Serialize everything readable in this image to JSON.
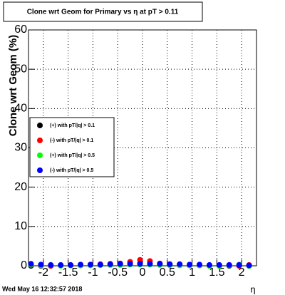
{
  "chart_data": {
    "type": "scatter",
    "title": "Clone wrt Geom for Primary vs  η at pT > 0.11",
    "x_label": "η",
    "y_label": "Clone wrt Geom (%)",
    "timestamp": "Wed May 16 12:32:57 2018",
    "x": [
      -2.25,
      -2.05,
      -1.85,
      -1.65,
      -1.45,
      -1.25,
      -1.05,
      -0.85,
      -0.65,
      -0.45,
      -0.25,
      -0.05,
      0.15,
      0.35,
      0.55,
      0.75,
      0.95,
      1.15,
      1.35,
      1.55,
      1.75,
      1.95,
      2.15
    ],
    "series": [
      {
        "name": "(+) with pT/|q| > 0.1",
        "color": "#000000",
        "values": [
          0,
          0,
          0,
          0.1,
          0.1,
          0.1,
          0.2,
          0.2,
          0.3,
          0.3,
          0.5,
          0.6,
          0.5,
          0.3,
          0.2,
          0.2,
          0.1,
          0.1,
          0,
          0,
          0,
          0,
          0
        ]
      },
      {
        "name": "(-) with pT/|q| > 0.1",
        "color": "#ff0000",
        "values": [
          0.2,
          0.1,
          0,
          0.1,
          0.2,
          0.2,
          0.3,
          0.4,
          0.5,
          0.6,
          1,
          1.5,
          1.2,
          0.6,
          0.4,
          0.3,
          0.2,
          0.2,
          0.1,
          0,
          0.2,
          0,
          0.2
        ]
      },
      {
        "name": "(+) with pT/|q| > 0.5",
        "color": "#00ff00",
        "values": [
          0.3,
          0.1,
          0.2,
          0,
          0.1,
          0.1,
          0.1,
          0.2,
          0.2,
          0.2,
          0.3,
          0.3,
          0.3,
          0.2,
          0.2,
          0.1,
          0.1,
          0.1,
          0,
          0,
          0.1,
          0.3,
          0
        ]
      },
      {
        "name": "(-) with pT/|q| > 0.5",
        "color": "#0000ff",
        "values": [
          0.5,
          0.3,
          0.2,
          0.2,
          0.2,
          0.3,
          0.3,
          0.3,
          0.4,
          0.5,
          0.5,
          0.5,
          0.5,
          0.5,
          0.4,
          0.4,
          0.3,
          0.3,
          0.2,
          0.2,
          0.2,
          0.2,
          0.1
        ]
      }
    ],
    "xlim": [
      -2.3,
      2.3
    ],
    "xticks": [
      -2,
      -1.5,
      -1,
      -0.5,
      0,
      0.5,
      1,
      1.5,
      2
    ],
    "ylim": [
      0,
      60
    ],
    "yticks": [
      0,
      10,
      20,
      30,
      40,
      50,
      60
    ],
    "grid": true
  }
}
